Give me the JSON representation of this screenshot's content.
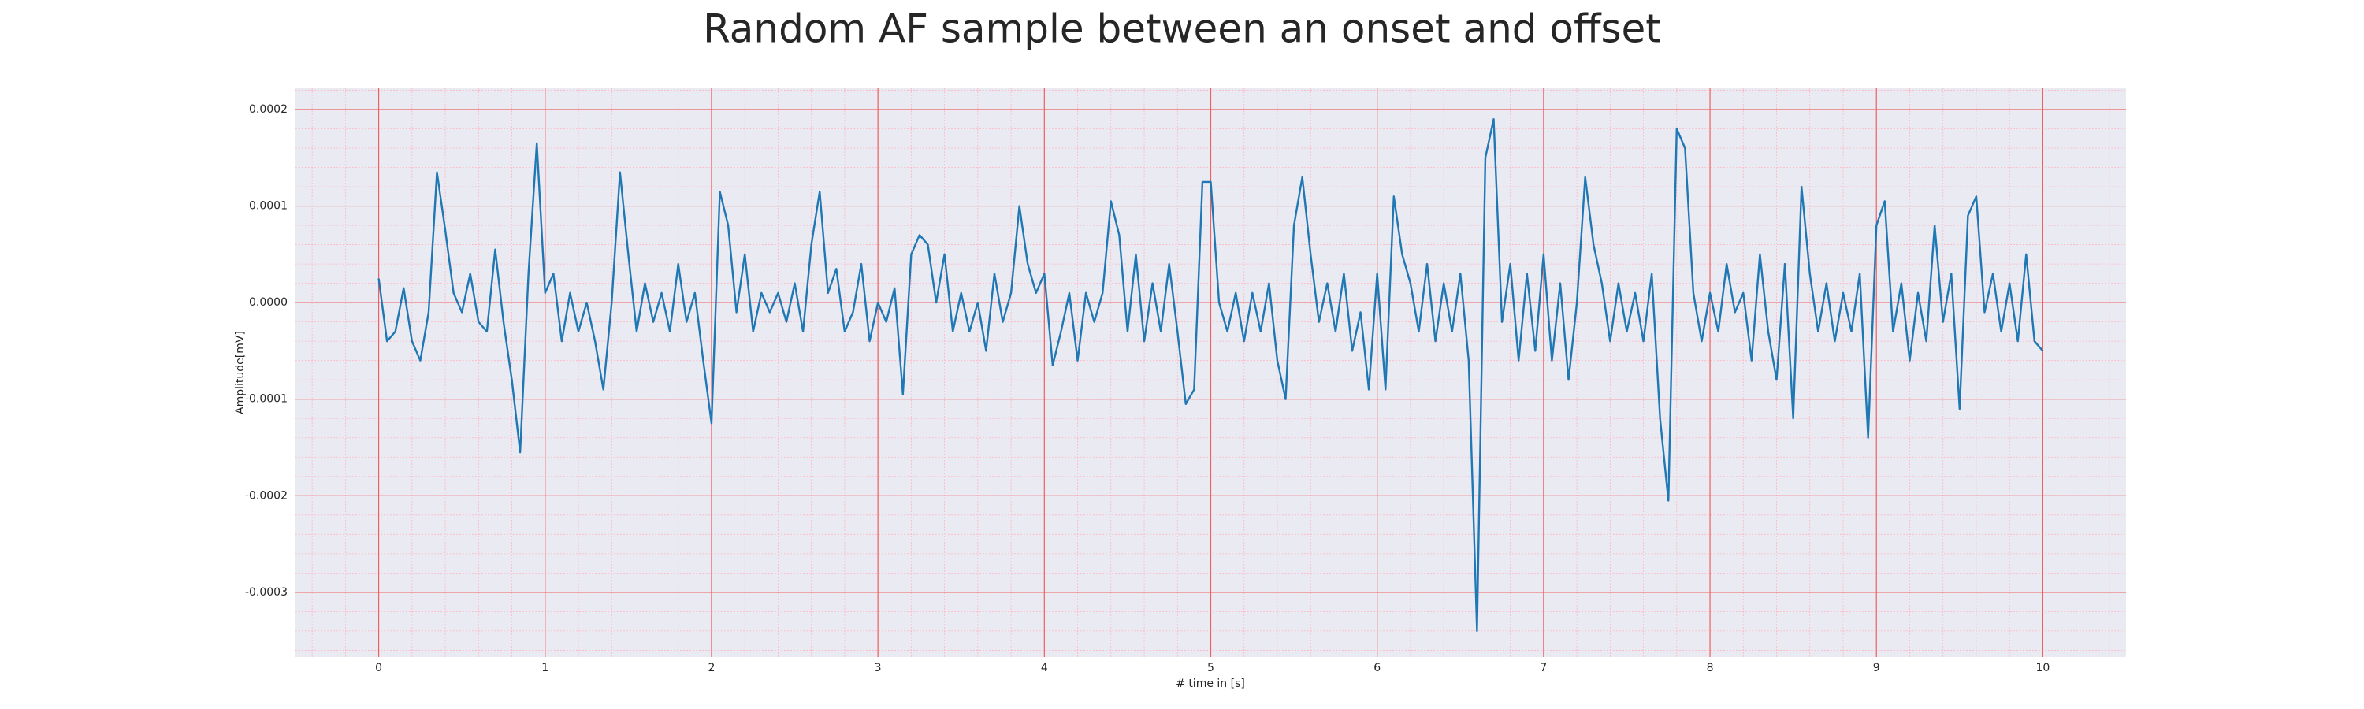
{
  "chart_data": {
    "type": "line",
    "title": "Random AF sample between an onset and offset",
    "x_label": "# time in [s]",
    "y_label": "Amplitude[mV]",
    "xlim": [
      -0.5,
      10.5
    ],
    "ylim": [
      -0.000367,
      0.000222
    ],
    "xticks": [
      0,
      1,
      2,
      3,
      4,
      5,
      6,
      7,
      8,
      9,
      10
    ],
    "yticks": [
      -0.0003,
      -0.0002,
      -0.0001,
      {
        "value": 0,
        "label": "0.0000"
      },
      0.0001,
      0.0002
    ],
    "grid": true,
    "minor_grid": true,
    "series": [
      {
        "color": "#1f77b4",
        "x": [
          0,
          0.05,
          0.1,
          0.15,
          0.2,
          0.25,
          0.3,
          0.35,
          0.4,
          0.45,
          0.5,
          0.55,
          0.6,
          0.65,
          0.7,
          0.75,
          0.8,
          0.85,
          0.9,
          0.95,
          1,
          1.05,
          1.1,
          1.15,
          1.2,
          1.25,
          1.3,
          1.35,
          1.4,
          1.45,
          1.5,
          1.55,
          1.6,
          1.65,
          1.7,
          1.75,
          1.8,
          1.85,
          1.9,
          1.95,
          2,
          2.05,
          2.1,
          2.15,
          2.2,
          2.25,
          2.3,
          2.35,
          2.4,
          2.45,
          2.5,
          2.55,
          2.6,
          2.65,
          2.7,
          2.75,
          2.8,
          2.85,
          2.9,
          2.95,
          3,
          3.05,
          3.1,
          3.15,
          3.2,
          3.25,
          3.3,
          3.35,
          3.4,
          3.45,
          3.5,
          3.55,
          3.6,
          3.65,
          3.7,
          3.75,
          3.8,
          3.85,
          3.9,
          3.95,
          4,
          4.05,
          4.1,
          4.15,
          4.2,
          4.25,
          4.3,
          4.35,
          4.4,
          4.45,
          4.5,
          4.55,
          4.6,
          4.65,
          4.7,
          4.75,
          4.8,
          4.85,
          4.9,
          4.95,
          5,
          5.05,
          5.1,
          5.15,
          5.2,
          5.25,
          5.3,
          5.35,
          5.4,
          5.45,
          5.5,
          5.55,
          5.6,
          5.65,
          5.7,
          5.75,
          5.8,
          5.85,
          5.9,
          5.95,
          6,
          6.05,
          6.1,
          6.15,
          6.2,
          6.25,
          6.3,
          6.35,
          6.4,
          6.45,
          6.5,
          6.55,
          6.6,
          6.65,
          6.7,
          6.75,
          6.8,
          6.85,
          6.9,
          6.95,
          7,
          7.05,
          7.1,
          7.15,
          7.2,
          7.25,
          7.3,
          7.35,
          7.4,
          7.45,
          7.5,
          7.55,
          7.6,
          7.65,
          7.7,
          7.75,
          7.8,
          7.85,
          7.9,
          7.95,
          8,
          8.05,
          8.1,
          8.15,
          8.2,
          8.25,
          8.3,
          8.35,
          8.4,
          8.45,
          8.5,
          8.55,
          8.6,
          8.65,
          8.7,
          8.75,
          8.8,
          8.85,
          8.9,
          8.95,
          9,
          9.05,
          9.1,
          9.15,
          9.2,
          9.25,
          9.3,
          9.35,
          9.4,
          9.45,
          9.5,
          9.55,
          9.6,
          9.65,
          9.7,
          9.75,
          9.8,
          9.85,
          9.9,
          9.95,
          10
        ],
        "values": [
          2.5e-05,
          -4e-05,
          -3e-05,
          1.5e-05,
          -4e-05,
          -6e-05,
          -1e-05,
          0.000135,
          7.5e-05,
          1e-05,
          -1e-05,
          3e-05,
          -2e-05,
          -3e-05,
          5.5e-05,
          -2e-05,
          -8e-05,
          -0.000155,
          3e-05,
          0.000165,
          1e-05,
          3e-05,
          -4e-05,
          1e-05,
          -3e-05,
          0,
          -4e-05,
          -9e-05,
          0,
          0.000135,
          5e-05,
          -3e-05,
          2e-05,
          -2e-05,
          1e-05,
          -3e-05,
          4e-05,
          -2e-05,
          1e-05,
          -6e-05,
          -0.000125,
          0.000115,
          8e-05,
          -1e-05,
          5e-05,
          -3e-05,
          1e-05,
          -1e-05,
          1e-05,
          -2e-05,
          2e-05,
          -3e-05,
          6e-05,
          0.000115,
          1e-05,
          3.5e-05,
          -3e-05,
          -1e-05,
          4e-05,
          -4e-05,
          0,
          -2e-05,
          1.5e-05,
          -9.5e-05,
          5e-05,
          7e-05,
          6e-05,
          0,
          5e-05,
          -3e-05,
          1e-05,
          -3e-05,
          0,
          -5e-05,
          3e-05,
          -2e-05,
          1e-05,
          0.0001,
          4e-05,
          1e-05,
          3e-05,
          -6.5e-05,
          -3e-05,
          1e-05,
          -6e-05,
          1e-05,
          -2e-05,
          1e-05,
          0.000105,
          7e-05,
          -3e-05,
          5e-05,
          -4e-05,
          2e-05,
          -3e-05,
          4e-05,
          -3e-05,
          -0.000105,
          -9e-05,
          0.000125,
          0.000125,
          0,
          -3e-05,
          1e-05,
          -4e-05,
          1e-05,
          -3e-05,
          2e-05,
          -6e-05,
          -0.0001,
          8e-05,
          0.00013,
          5e-05,
          -2e-05,
          2e-05,
          -3e-05,
          3e-05,
          -5e-05,
          -1e-05,
          -9e-05,
          3e-05,
          -9e-05,
          0.00011,
          5e-05,
          2e-05,
          -3e-05,
          4e-05,
          -4e-05,
          2e-05,
          -3e-05,
          3e-05,
          -6e-05,
          -0.00034,
          0.00015,
          0.00019,
          -2e-05,
          4e-05,
          -6e-05,
          3e-05,
          -5e-05,
          5e-05,
          -6e-05,
          2e-05,
          -8e-05,
          0,
          0.00013,
          6e-05,
          2e-05,
          -4e-05,
          2e-05,
          -3e-05,
          1e-05,
          -4e-05,
          3e-05,
          -0.00012,
          -0.000205,
          0.00018,
          0.00016,
          1e-05,
          -4e-05,
          1e-05,
          -3e-05,
          4e-05,
          -1e-05,
          1e-05,
          -6e-05,
          5e-05,
          -3e-05,
          -8e-05,
          4e-05,
          -0.00012,
          0.00012,
          3e-05,
          -3e-05,
          2e-05,
          -4e-05,
          1e-05,
          -3e-05,
          3e-05,
          -0.00014,
          8e-05,
          0.000105,
          -3e-05,
          2e-05,
          -6e-05,
          1e-05,
          -4e-05,
          8e-05,
          -2e-05,
          3e-05,
          -0.00011,
          9e-05,
          0.00011,
          -1e-05,
          3e-05,
          -3e-05,
          2e-05,
          -4e-05,
          5e-05,
          -4e-05,
          -5e-05
        ]
      }
    ]
  }
}
